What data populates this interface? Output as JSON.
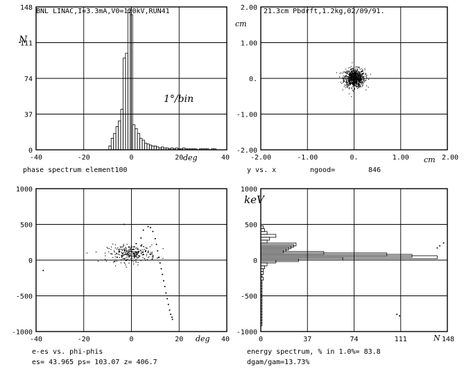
{
  "chart_data": [
    {
      "id": "phase",
      "type": "bar",
      "title": "BNL LINAC,I=3.3mA,V0=120kV,RUN41",
      "caption": "phase spectrum    element100",
      "ylabel": "N",
      "bin_note": "1°/bin",
      "x_unit": "deg",
      "xlim": [
        -40,
        40
      ],
      "ylim": [
        0,
        148
      ],
      "xticks": [
        "-40",
        "-20",
        "0",
        "20",
        "40"
      ],
      "yticks": [
        "0",
        "37",
        "74",
        "111",
        "148"
      ],
      "grid": true,
      "x": [
        -9,
        -8,
        -7,
        -6,
        -5,
        -4,
        -3,
        -2,
        -1,
        0,
        1,
        2,
        3,
        4,
        5,
        6,
        7,
        8,
        9,
        10,
        11,
        12,
        13,
        14,
        15,
        16,
        17,
        18,
        19,
        20,
        21,
        22,
        23,
        24,
        25,
        26,
        27,
        28,
        29,
        30,
        31,
        32,
        33,
        34,
        35
      ],
      "values": [
        4,
        12,
        17,
        24,
        30,
        42,
        95,
        100,
        145,
        140,
        26,
        22,
        17,
        12,
        10,
        7,
        6,
        5,
        4,
        4,
        3,
        2,
        3,
        2,
        2,
        1,
        2,
        1,
        2,
        1,
        1,
        2,
        1,
        1,
        1,
        1,
        1,
        0,
        1,
        1,
        1,
        1,
        0,
        1,
        1
      ]
    },
    {
      "id": "yx",
      "type": "scatter",
      "title": "21.3cm Pbdrft,1.2kg,02/09/91.",
      "caption": "y vs. x",
      "ngood_label": "ngood=",
      "ngood": "846",
      "x_unit": "cm",
      "y_unit": "cm",
      "xlim": [
        -2.0,
        2.0
      ],
      "ylim": [
        -2.0,
        2.0
      ],
      "xticks": [
        "-2.00",
        "-1.00",
        "0.",
        "1.00",
        "2.00"
      ],
      "yticks": [
        "2.00",
        "1.00",
        "0.",
        "-1.00",
        "-2.00"
      ],
      "grid": true,
      "cloud": {
        "center": [
          0.0,
          0.02
        ],
        "sigma": [
          0.11,
          0.13
        ],
        "n": 846
      }
    },
    {
      "id": "phasespace",
      "type": "scatter",
      "caption": "e-es vs. phi-phis",
      "params": "es= 43.965 ps= 103.07 z= 406.7",
      "x_unit": "deg",
      "xlim": [
        -40,
        40
      ],
      "ylim": [
        -1000,
        1000
      ],
      "xticks": [
        "-40",
        "-20",
        "0",
        "20",
        "40"
      ],
      "yticks": [
        "1000",
        "500",
        "0",
        "-500",
        "-1000"
      ],
      "grid": true,
      "points": [
        [
          -37,
          -145
        ],
        [
          -3,
          500
        ],
        [
          0,
          190
        ],
        [
          2,
          230
        ],
        [
          4,
          310
        ],
        [
          5,
          420
        ],
        [
          7,
          470
        ],
        [
          8,
          455
        ],
        [
          9,
          400
        ],
        [
          10,
          300
        ],
        [
          10.5,
          220
        ],
        [
          11,
          130
        ],
        [
          11.5,
          40
        ],
        [
          12,
          -40
        ],
        [
          12.5,
          -120
        ],
        [
          13,
          -200
        ],
        [
          13.5,
          -290
        ],
        [
          14,
          -370
        ],
        [
          14.5,
          -460
        ],
        [
          15,
          -540
        ],
        [
          15.5,
          -620
        ],
        [
          16,
          -700
        ],
        [
          16.5,
          -760
        ],
        [
          17,
          -800
        ],
        [
          17.2,
          -830
        ],
        [
          -5,
          120
        ],
        [
          -4,
          60
        ],
        [
          -3,
          20
        ],
        [
          -2,
          0
        ],
        [
          -6,
          40
        ],
        [
          -7,
          -20
        ],
        [
          -1,
          180
        ],
        [
          1,
          150
        ],
        [
          3,
          120
        ],
        [
          5,
          80
        ],
        [
          6,
          130
        ],
        [
          7,
          110
        ],
        [
          8,
          80
        ],
        [
          9,
          60
        ],
        [
          4,
          200
        ],
        [
          2,
          100
        ]
      ],
      "core": {
        "center": [
          0,
          95
        ],
        "spread": [
          5,
          60
        ]
      }
    },
    {
      "id": "energy",
      "type": "bar",
      "caption": "energy spectrum, % in  1.0%= 83.8",
      "stats": "dgam/gam=13.73%",
      "ylabel": "keV",
      "xlabel": "N",
      "xlim": [
        0,
        148
      ],
      "ylim": [
        -1000,
        1000
      ],
      "xticks": [
        "0",
        "37",
        "74",
        "111",
        "148"
      ],
      "yticks": [
        "1000",
        "500",
        "0",
        "-500",
        "-1000"
      ],
      "grid": true,
      "orientation": "horizontal",
      "energy": [
        460,
        420,
        380,
        340,
        300,
        260,
        220,
        200,
        180,
        160,
        140,
        120,
        100,
        80,
        60,
        40,
        20,
        0,
        -20,
        -60,
        -100,
        -140,
        -180,
        -220,
        -260,
        -300,
        -340,
        -380,
        -420,
        -460,
        -500,
        -540,
        -580,
        -620,
        -660,
        -700,
        -740,
        -780,
        -820,
        -860,
        -900
      ],
      "counts": [
        2,
        3,
        5,
        12,
        7,
        5,
        28,
        26,
        24,
        22,
        20,
        18,
        50,
        100,
        120,
        140,
        65,
        30,
        12,
        5,
        3,
        2,
        2,
        1,
        2,
        1,
        1,
        1,
        1,
        1,
        1,
        1,
        1,
        1,
        1,
        1,
        1,
        1,
        1,
        1,
        1
      ],
      "stray_points": [
        [
          140,
          170
        ],
        [
          142,
          200
        ],
        [
          145,
          240
        ],
        [
          108,
          -760
        ],
        [
          110,
          -780
        ]
      ]
    }
  ]
}
